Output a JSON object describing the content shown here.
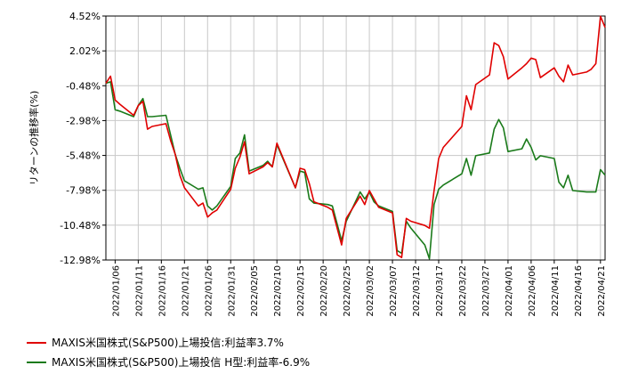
{
  "chart_data": {
    "type": "line",
    "ylabel": "リターンの推移率(%)",
    "y_ticks": [
      "4.52%",
      "2.02%",
      "-0.48%",
      "-2.98%",
      "-5.48%",
      "-7.98%",
      "-10.48%",
      "-12.98%"
    ],
    "y_tick_values": [
      4.52,
      2.02,
      -0.48,
      -2.98,
      -5.48,
      -7.98,
      -10.48,
      -12.98
    ],
    "ylim": [
      -12.98,
      4.52
    ],
    "x_ticks": [
      "2022/01/06",
      "2022/01/11",
      "2022/01/16",
      "2022/01/21",
      "2022/01/26",
      "2022/01/31",
      "2022/02/05",
      "2022/02/10",
      "2022/02/15",
      "2022/02/20",
      "2022/02/25",
      "2022/03/02",
      "2022/03/07",
      "2022/03/12",
      "2022/03/17",
      "2022/03/22",
      "2022/03/27",
      "2022/04/01",
      "2022/04/06",
      "2022/04/11",
      "2022/04/16",
      "2022/04/21"
    ],
    "xlim": [
      "2022/01/04",
      "2022/04/22"
    ],
    "grid": true,
    "legend_position": "bottom-left",
    "series": [
      {
        "name": "MAXIS米国株式(S&P500)上場投信:利益率3.7%",
        "color": "#e00000",
        "x": [
          "2022/01/04",
          "2022/01/05",
          "2022/01/06",
          "2022/01/07",
          "2022/01/10",
          "2022/01/11",
          "2022/01/12",
          "2022/01/13",
          "2022/01/14",
          "2022/01/17",
          "2022/01/18",
          "2022/01/19",
          "2022/01/20",
          "2022/01/21",
          "2022/01/24",
          "2022/01/25",
          "2022/01/26",
          "2022/01/27",
          "2022/01/28",
          "2022/01/31",
          "2022/02/01",
          "2022/02/02",
          "2022/02/03",
          "2022/02/04",
          "2022/02/07",
          "2022/02/08",
          "2022/02/09",
          "2022/02/10",
          "2022/02/14",
          "2022/02/15",
          "2022/02/16",
          "2022/02/17",
          "2022/02/18",
          "2022/02/21",
          "2022/02/22",
          "2022/02/24",
          "2022/02/25",
          "2022/02/28",
          "2022/03/01",
          "2022/03/02",
          "2022/03/03",
          "2022/03/04",
          "2022/03/07",
          "2022/03/08",
          "2022/03/09",
          "2022/03/10",
          "2022/03/11",
          "2022/03/14",
          "2022/03/15",
          "2022/03/16",
          "2022/03/17",
          "2022/03/18",
          "2022/03/22",
          "2022/03/23",
          "2022/03/24",
          "2022/03/25",
          "2022/03/28",
          "2022/03/29",
          "2022/03/30",
          "2022/03/31",
          "2022/04/01",
          "2022/04/04",
          "2022/04/05",
          "2022/04/06",
          "2022/04/07",
          "2022/04/08",
          "2022/04/11",
          "2022/04/12",
          "2022/04/13",
          "2022/04/14",
          "2022/04/15",
          "2022/04/18",
          "2022/04/19",
          "2022/04/20",
          "2022/04/21",
          "2022/04/22"
        ],
        "values": [
          -0.3,
          0.2,
          -1.5,
          -1.8,
          -2.6,
          -1.9,
          -1.6,
          -3.6,
          -3.4,
          -3.2,
          -4.4,
          -5.4,
          -6.9,
          -7.8,
          -9.1,
          -8.9,
          -9.9,
          -9.6,
          -9.4,
          -7.9,
          -6.4,
          -5.6,
          -4.5,
          -6.8,
          -6.3,
          -6.0,
          -6.3,
          -4.6,
          -7.8,
          -6.4,
          -6.5,
          -7.5,
          -8.8,
          -9.2,
          -9.4,
          -11.9,
          -10.0,
          -8.4,
          -9.0,
          -8.0,
          -8.6,
          -9.2,
          -9.6,
          -12.6,
          -12.8,
          -10.0,
          -10.2,
          -10.5,
          -10.7,
          -8.0,
          -5.7,
          -4.9,
          -3.4,
          -1.2,
          -2.2,
          -0.4,
          0.3,
          2.6,
          2.4,
          1.6,
          0.0,
          0.8,
          1.1,
          1.5,
          1.4,
          0.1,
          0.8,
          0.2,
          -0.2,
          1.0,
          0.3,
          0.5,
          0.7,
          1.1,
          4.5,
          3.7
        ]
      },
      {
        "name": "MAXIS米国株式(S&P500)上場投信 H型:利益率-6.9%",
        "color": "#1a7a1a",
        "x": [
          "2022/01/04",
          "2022/01/05",
          "2022/01/06",
          "2022/01/07",
          "2022/01/10",
          "2022/01/11",
          "2022/01/12",
          "2022/01/13",
          "2022/01/14",
          "2022/01/17",
          "2022/01/18",
          "2022/01/19",
          "2022/01/20",
          "2022/01/21",
          "2022/01/24",
          "2022/01/25",
          "2022/01/26",
          "2022/01/27",
          "2022/01/28",
          "2022/01/31",
          "2022/02/01",
          "2022/02/02",
          "2022/02/03",
          "2022/02/04",
          "2022/02/07",
          "2022/02/08",
          "2022/02/09",
          "2022/02/10",
          "2022/02/14",
          "2022/02/15",
          "2022/02/16",
          "2022/02/17",
          "2022/02/18",
          "2022/02/21",
          "2022/02/22",
          "2022/02/24",
          "2022/02/25",
          "2022/02/28",
          "2022/03/01",
          "2022/03/02",
          "2022/03/03",
          "2022/03/04",
          "2022/03/07",
          "2022/03/08",
          "2022/03/09",
          "2022/03/10",
          "2022/03/11",
          "2022/03/14",
          "2022/03/15",
          "2022/03/16",
          "2022/03/17",
          "2022/03/18",
          "2022/03/22",
          "2022/03/23",
          "2022/03/24",
          "2022/03/25",
          "2022/03/28",
          "2022/03/29",
          "2022/03/30",
          "2022/03/31",
          "2022/04/01",
          "2022/04/04",
          "2022/04/05",
          "2022/04/06",
          "2022/04/07",
          "2022/04/08",
          "2022/04/11",
          "2022/04/12",
          "2022/04/13",
          "2022/04/14",
          "2022/04/15",
          "2022/04/18",
          "2022/04/19",
          "2022/04/20",
          "2022/04/21",
          "2022/04/22"
        ],
        "values": [
          -0.3,
          -0.2,
          -2.2,
          -2.3,
          -2.7,
          -1.9,
          -1.4,
          -2.7,
          -2.7,
          -2.6,
          -4.0,
          -5.4,
          -6.4,
          -7.3,
          -7.9,
          -7.8,
          -9.1,
          -9.4,
          -9.1,
          -7.7,
          -5.7,
          -5.3,
          -4.0,
          -6.6,
          -6.2,
          -5.9,
          -6.3,
          -4.7,
          -7.8,
          -6.6,
          -6.7,
          -8.6,
          -8.9,
          -9.0,
          -9.1,
          -11.6,
          -10.2,
          -8.1,
          -8.6,
          -8.1,
          -8.8,
          -9.1,
          -9.5,
          -12.3,
          -12.5,
          -10.2,
          -10.7,
          -11.9,
          -12.9,
          -9.0,
          -7.9,
          -7.6,
          -6.8,
          -5.7,
          -6.9,
          -5.5,
          -5.3,
          -3.6,
          -2.9,
          -3.5,
          -5.2,
          -5.0,
          -4.3,
          -4.9,
          -5.8,
          -5.5,
          -5.7,
          -7.4,
          -7.8,
          -6.9,
          -8.0,
          -8.1,
          -8.1,
          -8.1,
          -6.5,
          -6.9
        ]
      }
    ]
  }
}
